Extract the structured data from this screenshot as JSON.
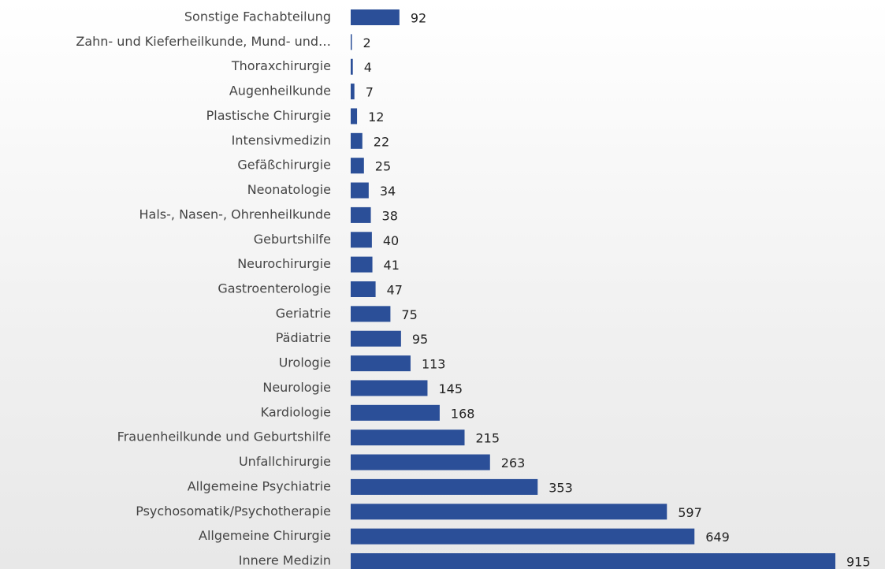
{
  "chart_data": {
    "type": "barh",
    "categories": [
      "Sonstige Fachabteilung",
      "Zahn- und Kieferheilkunde, Mund- und…",
      "Thoraxchirurgie",
      "Augenheilkunde",
      "Plastische Chirurgie",
      "Intensivmedizin",
      "Gefäßchirurgie",
      "Neonatologie",
      "Hals-, Nasen-, Ohrenheilkunde",
      "Geburtshilfe",
      "Neurochirurgie",
      "Gastroenterologie",
      "Geriatrie",
      "Pädiatrie",
      "Urologie",
      "Neurologie",
      "Kardiologie",
      "Frauenheilkunde und Geburtshilfe",
      "Unfallchirurgie",
      "Allgemeine Psychiatrie",
      "Psychosomatik/Psychotherapie",
      "Allgemeine Chirurgie",
      "Innere Medizin"
    ],
    "values": [
      92,
      2,
      4,
      7,
      12,
      22,
      25,
      34,
      38,
      40,
      41,
      47,
      75,
      95,
      113,
      145,
      168,
      215,
      263,
      353,
      597,
      649,
      915
    ],
    "color": "#2b4f98"
  }
}
